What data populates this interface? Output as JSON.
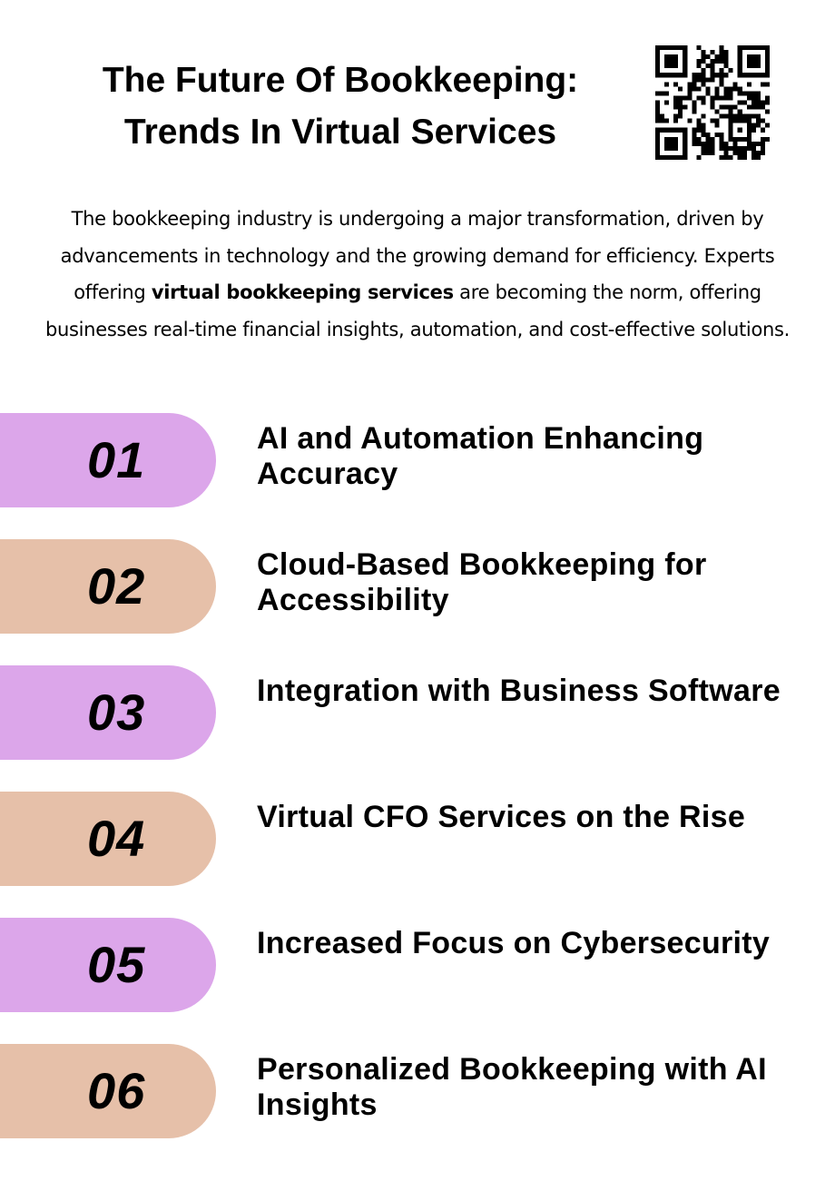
{
  "title": {
    "line1": "The Future Of Bookkeeping:",
    "line2": "Trends In Virtual Services"
  },
  "qr_code": {
    "icon": "qr-code"
  },
  "intro": {
    "before": "The bookkeeping industry is undergoing a major transformation, driven by advancements in technology and the growing demand for efficiency. Experts offering ",
    "bold": "virtual bookkeeping services",
    "after": " are becoming the norm, offering businesses real-time financial insights, automation, and cost-effective solutions."
  },
  "colors": {
    "purple": "#dca6ea",
    "tan": "#e6c0a9"
  },
  "items": [
    {
      "number": "01",
      "label": "AI and Automation Enhancing Accuracy",
      "color": "#dca6ea"
    },
    {
      "number": "02",
      "label": "Cloud-Based Bookkeeping for Accessibility",
      "color": "#e6c0a9"
    },
    {
      "number": "03",
      "label": "Integration with Business Software",
      "color": "#dca6ea"
    },
    {
      "number": "04",
      "label": "Virtual CFO Services on the Rise",
      "color": "#e6c0a9"
    },
    {
      "number": "05",
      "label": "Increased Focus on Cybersecurity",
      "color": "#dca6ea"
    },
    {
      "number": "06",
      "label": "Personalized Bookkeeping with AI Insights",
      "color": "#e6c0a9"
    }
  ]
}
